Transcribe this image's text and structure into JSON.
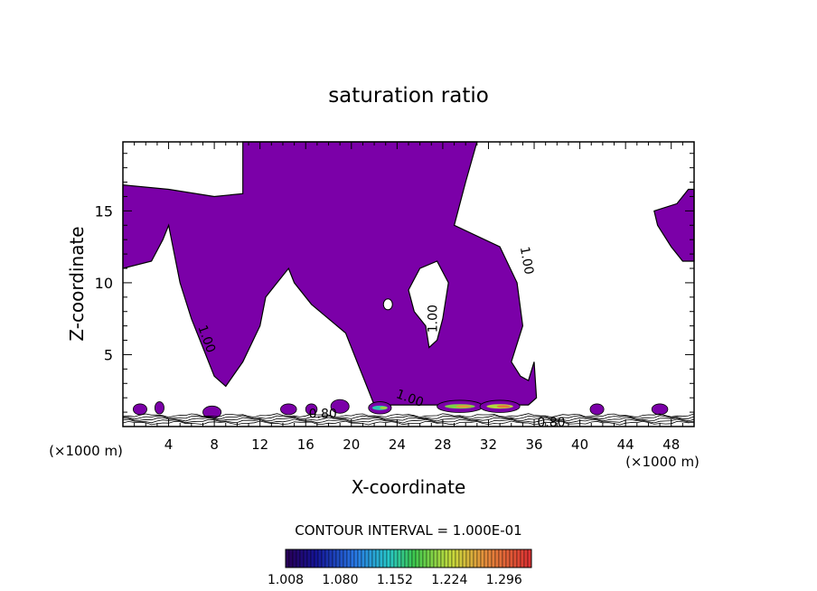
{
  "chart_data": {
    "type": "heatmap",
    "title": "saturation ratio",
    "xlabel": "X-coordinate",
    "ylabel": "Z-coordinate",
    "x_unit": "(×1000 m)",
    "z_unit": "(×1000 m)",
    "xlim": [
      0,
      50
    ],
    "ylim": [
      0,
      19.8
    ],
    "x_ticks": [
      4,
      8,
      12,
      16,
      20,
      24,
      28,
      32,
      36,
      40,
      44,
      48
    ],
    "y_ticks": [
      5,
      10,
      15
    ],
    "contour_interval_text": "CONTOUR INTERVAL = 1.000E-01",
    "fill_color": "#7b00a8",
    "colorbar": {
      "labels": [
        "1.008",
        "1.080",
        "1.152",
        "1.224",
        "1.296"
      ],
      "values": [
        1.008,
        1.08,
        1.152,
        1.224,
        1.296
      ],
      "min": 1.008,
      "max": 1.332
    },
    "contour_labels": [
      {
        "text": "1.00",
        "x": 35.0,
        "z": 11.5,
        "angle": 80
      },
      {
        "text": "1.00",
        "x": 27.5,
        "z": 7.5,
        "angle": -90
      },
      {
        "text": "1.00",
        "x": 7.0,
        "z": 6.0,
        "angle": 70
      },
      {
        "text": "1.00",
        "x": 25.0,
        "z": 1.7,
        "angle": 20
      },
      {
        "text": "0.80",
        "x": 17.5,
        "z": 0.6,
        "angle": 0
      },
      {
        "text": "0.80",
        "x": 37.5,
        "z": 0.0,
        "angle": 0
      }
    ],
    "supersaturated_region": [
      [
        10.5,
        19.8
      ],
      [
        31.0,
        19.8
      ],
      [
        30.0,
        17.0
      ],
      [
        29.0,
        14.0
      ],
      [
        33.0,
        12.5
      ],
      [
        34.5,
        10.0
      ],
      [
        35.0,
        7.0
      ],
      [
        34.0,
        4.5
      ],
      [
        34.8,
        3.5
      ],
      [
        35.5,
        3.2
      ],
      [
        36.0,
        4.5
      ],
      [
        36.2,
        2.0
      ],
      [
        35.5,
        1.5
      ],
      [
        22.0,
        1.5
      ],
      [
        21.5,
        2.5
      ],
      [
        20.5,
        4.5
      ],
      [
        19.5,
        6.5
      ],
      [
        18.0,
        7.5
      ],
      [
        16.5,
        8.5
      ],
      [
        15.0,
        10.0
      ],
      [
        14.5,
        11.0
      ],
      [
        13.5,
        10.0
      ],
      [
        12.5,
        9.0
      ],
      [
        12.0,
        7.0
      ],
      [
        10.5,
        4.5
      ],
      [
        9.0,
        2.8
      ],
      [
        8.0,
        3.5
      ],
      [
        7.0,
        5.5
      ],
      [
        6.0,
        7.5
      ],
      [
        5.0,
        10.0
      ],
      [
        4.5,
        12.0
      ],
      [
        4.0,
        14.0
      ],
      [
        3.5,
        13.0
      ],
      [
        2.5,
        11.5
      ],
      [
        0.0,
        11.0
      ],
      [
        0.0,
        16.8
      ],
      [
        4.0,
        16.5
      ],
      [
        8.0,
        16.0
      ],
      [
        10.5,
        16.2
      ]
    ],
    "dry_pocket": [
      [
        25.0,
        9.5
      ],
      [
        26.0,
        11.0
      ],
      [
        27.5,
        11.5
      ],
      [
        28.5,
        10.0
      ],
      [
        28.0,
        7.5
      ],
      [
        27.5,
        6.0
      ],
      [
        26.8,
        5.5
      ],
      [
        26.5,
        7.0
      ],
      [
        25.5,
        8.0
      ]
    ],
    "upper_right_region": [
      [
        46.5,
        15.0
      ],
      [
        48.5,
        15.5
      ],
      [
        49.5,
        16.5
      ],
      [
        50.0,
        16.5
      ],
      [
        50.0,
        11.5
      ],
      [
        49.0,
        11.5
      ],
      [
        48.0,
        12.5
      ],
      [
        46.8,
        14.0
      ]
    ],
    "low_level_cells": [
      {
        "x": 1.5,
        "z": 1.2,
        "w": 1.2,
        "h": 0.5
      },
      {
        "x": 3.2,
        "z": 1.3,
        "w": 0.8,
        "h": 0.6
      },
      {
        "x": 7.8,
        "z": 1.0,
        "w": 1.6,
        "h": 0.6
      },
      {
        "x": 14.5,
        "z": 1.2,
        "w": 1.4,
        "h": 0.5
      },
      {
        "x": 16.5,
        "z": 1.2,
        "w": 1.0,
        "h": 0.5
      },
      {
        "x": 19.0,
        "z": 1.4,
        "w": 1.6,
        "h": 0.7
      },
      {
        "x": 22.5,
        "z": 1.3,
        "w": 2.0,
        "h": 0.6,
        "peak": 1.15
      },
      {
        "x": 29.5,
        "z": 1.4,
        "w": 4.0,
        "h": 0.6,
        "peak": 1.2
      },
      {
        "x": 33.0,
        "z": 1.4,
        "w": 3.5,
        "h": 0.6,
        "peak": 1.22
      },
      {
        "x": 41.5,
        "z": 1.2,
        "w": 1.2,
        "h": 0.5
      },
      {
        "x": 47.0,
        "z": 1.2,
        "w": 1.4,
        "h": 0.5
      }
    ]
  }
}
